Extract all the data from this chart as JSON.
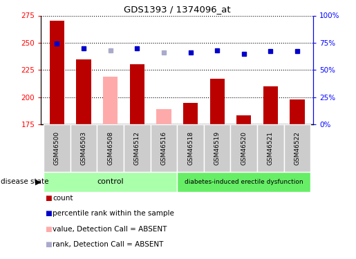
{
  "title": "GDS1393 / 1374096_at",
  "samples": [
    "GSM46500",
    "GSM46503",
    "GSM46508",
    "GSM46512",
    "GSM46516",
    "GSM46518",
    "GSM46519",
    "GSM46520",
    "GSM46521",
    "GSM46522"
  ],
  "bar_values": [
    270,
    235,
    219,
    230,
    189,
    195,
    217,
    183,
    210,
    198
  ],
  "bar_absent": [
    false,
    false,
    true,
    false,
    true,
    false,
    false,
    false,
    false,
    false
  ],
  "rank_values": [
    74,
    70,
    68,
    70,
    66,
    66,
    68,
    65,
    67,
    67
  ],
  "rank_absent": [
    false,
    false,
    true,
    false,
    true,
    false,
    false,
    false,
    false,
    false
  ],
  "ylim_left": [
    175,
    275
  ],
  "ylim_right": [
    0,
    100
  ],
  "yticks_left": [
    175,
    200,
    225,
    250,
    275
  ],
  "yticks_right": [
    0,
    25,
    50,
    75,
    100
  ],
  "ytick_labels_right": [
    "0%",
    "25%",
    "50%",
    "75%",
    "100%"
  ],
  "bar_color_normal": "#bb0000",
  "bar_color_absent": "#ffaaaa",
  "rank_color_normal": "#0000cc",
  "rank_color_absent": "#aaaacc",
  "control_color": "#aaffaa",
  "diabetes_color": "#66ee66",
  "label_area_color": "#cccccc",
  "legend_items": [
    {
      "color": "#bb0000",
      "label": "count"
    },
    {
      "color": "#0000cc",
      "label": "percentile rank within the sample"
    },
    {
      "color": "#ffaaaa",
      "label": "value, Detection Call = ABSENT"
    },
    {
      "color": "#aaaacc",
      "label": "rank, Detection Call = ABSENT"
    }
  ]
}
